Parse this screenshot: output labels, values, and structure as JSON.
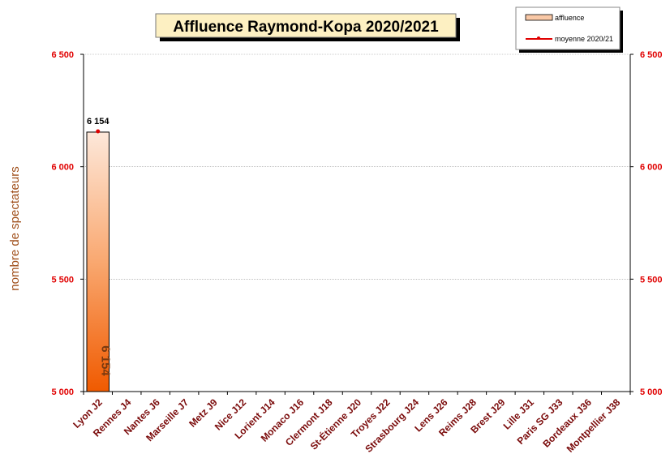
{
  "chart_data": {
    "type": "bar",
    "title": "Affluence Raymond-Kopa 2020/2021",
    "ylabel": "nombre de spectateurs",
    "xlabel": "",
    "ylim": [
      5000,
      6500
    ],
    "yticks": [
      5000,
      5500,
      6000,
      6500
    ],
    "ytick_labels": [
      "5 000",
      "5 500",
      "6 000",
      "6 500"
    ],
    "grid": true,
    "legend_position": "top-right",
    "categories": [
      "Lyon J2",
      "Rennes J4",
      "Nantes J6",
      "Marseille J7",
      "Metz J9",
      "Nice J12",
      "Lorient J14",
      "Monaco J16",
      "Clermont J18",
      "St-Étienne J20",
      "Troyes J22",
      "Strasbourg J24",
      "Lens J26",
      "Reims J28",
      "Brest J29",
      "Lille J31",
      "Paris SG J33",
      "Bordeaux J36",
      "Montpellier J38"
    ],
    "series": [
      {
        "name": "affluence",
        "type": "bar",
        "values": [
          6154,
          null,
          null,
          null,
          null,
          null,
          null,
          null,
          null,
          null,
          null,
          null,
          null,
          null,
          null,
          null,
          null,
          null,
          null
        ],
        "data_labels": [
          "6 154"
        ],
        "color": "#f26a10"
      },
      {
        "name": "moyenne 2020/21",
        "type": "line",
        "values": [
          6154,
          null,
          null,
          null,
          null,
          null,
          null,
          null,
          null,
          null,
          null,
          null,
          null,
          null,
          null,
          null,
          null,
          null,
          null
        ],
        "data_labels": [
          "6 154"
        ],
        "color": "#e00000"
      }
    ]
  }
}
